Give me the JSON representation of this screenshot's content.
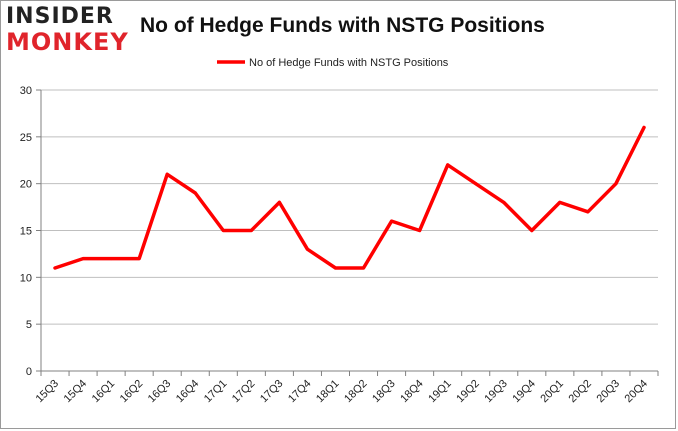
{
  "logo": {
    "line1": "INSIDER",
    "line2": "MONKEY"
  },
  "title": "No of Hedge Funds with NSTG Positions",
  "colors": {
    "series": "#ff0000",
    "grid": "#bfbfbf",
    "axis": "#808080",
    "logo_red": "#e0242b"
  },
  "chart_data": {
    "type": "line",
    "title": "No of Hedge Funds with NSTG Positions",
    "xlabel": "",
    "ylabel": "",
    "ylim": [
      0,
      30
    ],
    "yticks": [
      0,
      5,
      10,
      15,
      20,
      25,
      30
    ],
    "grid": true,
    "legend_position": "top-center",
    "categories": [
      "15Q3",
      "15Q4",
      "16Q1",
      "16Q2",
      "16Q3",
      "16Q4",
      "17Q1",
      "17Q2",
      "17Q3",
      "17Q4",
      "18Q1",
      "18Q2",
      "18Q3",
      "18Q4",
      "19Q1",
      "19Q2",
      "19Q3",
      "19Q4",
      "20Q1",
      "20Q2",
      "20Q3",
      "20Q4"
    ],
    "series": [
      {
        "name": "No of Hedge Funds with NSTG Positions",
        "values": [
          11,
          12,
          12,
          12,
          21,
          19,
          15,
          15,
          18,
          13,
          11,
          11,
          16,
          15,
          22,
          20,
          18,
          15,
          18,
          17,
          20,
          26
        ]
      }
    ]
  }
}
